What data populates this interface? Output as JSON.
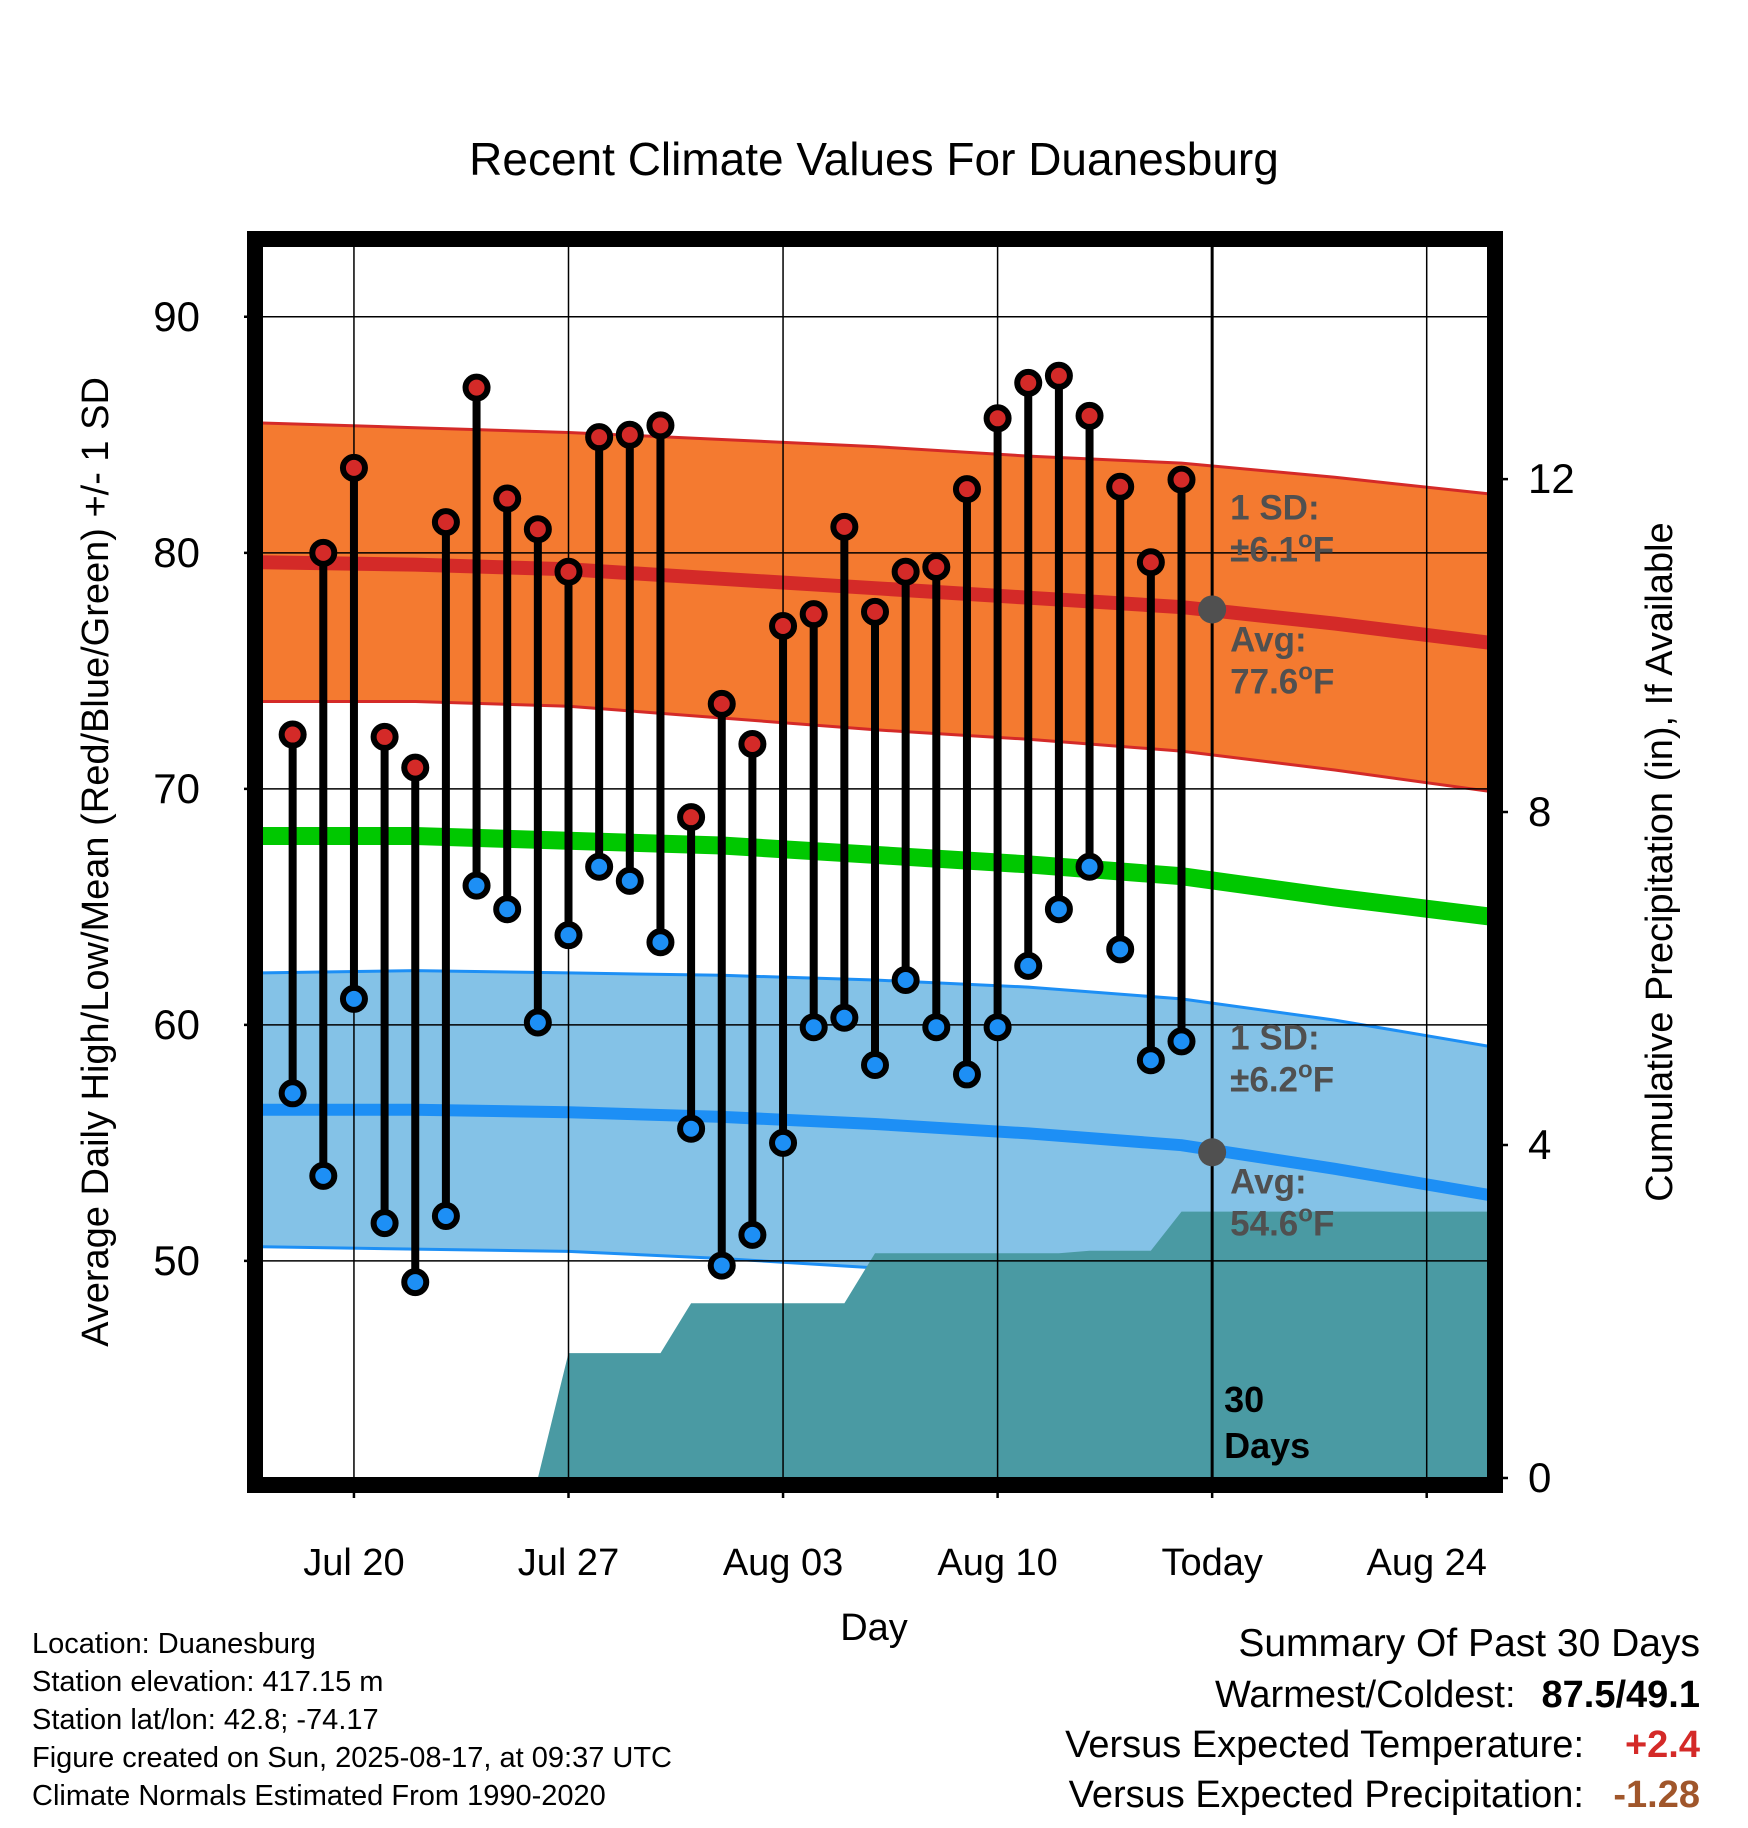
{
  "chart_data": {
    "type": "line",
    "title": "Recent Climate Values For Duanesburg",
    "xlabel": "Day",
    "ylabel": "Average Daily High/Low/Mean (Red/Blue/Green) +/- 1 SD",
    "y2label": "Cumulative Precipitation (in), If Available",
    "ylim": [
      40.8,
      93
    ],
    "y2lim": [
      0,
      14.8
    ],
    "yticks": [
      50,
      60,
      70,
      80,
      90
    ],
    "y2ticks": [
      0,
      4,
      8,
      12
    ],
    "xlim": [
      "2025-07-17",
      "2025-08-26"
    ],
    "xticks": [
      {
        "date": "2025-07-20",
        "label": "Jul 20"
      },
      {
        "date": "2025-07-27",
        "label": "Jul 27"
      },
      {
        "date": "2025-08-03",
        "label": "Aug 03"
      },
      {
        "date": "2025-08-10",
        "label": "Aug 10"
      },
      {
        "date": "2025-08-17",
        "label": "Today"
      },
      {
        "date": "2025-08-24",
        "label": "Aug 24"
      }
    ],
    "grid": true,
    "today": "2025-08-17",
    "window_label": "30\nDays",
    "observed": {
      "dates": [
        "2025-07-18",
        "2025-07-19",
        "2025-07-20",
        "2025-07-21",
        "2025-07-22",
        "2025-07-23",
        "2025-07-24",
        "2025-07-25",
        "2025-07-26",
        "2025-07-27",
        "2025-07-28",
        "2025-07-29",
        "2025-07-30",
        "2025-07-31",
        "2025-08-01",
        "2025-08-02",
        "2025-08-03",
        "2025-08-04",
        "2025-08-05",
        "2025-08-06",
        "2025-08-07",
        "2025-08-08",
        "2025-08-09",
        "2025-08-10",
        "2025-08-11",
        "2025-08-12",
        "2025-08-13",
        "2025-08-14",
        "2025-08-15",
        "2025-08-16"
      ],
      "high": [
        72.3,
        80.0,
        83.6,
        72.2,
        70.9,
        81.3,
        87.0,
        82.3,
        81.0,
        79.2,
        84.9,
        85.0,
        85.4,
        68.8,
        73.6,
        71.9,
        76.9,
        77.4,
        81.1,
        77.5,
        79.2,
        79.4,
        82.7,
        85.7,
        87.2,
        87.5,
        85.8,
        82.8,
        79.6,
        83.1
      ],
      "low": [
        57.1,
        53.6,
        61.1,
        51.6,
        49.1,
        51.9,
        65.9,
        64.9,
        60.1,
        63.8,
        66.7,
        66.1,
        63.5,
        55.6,
        49.8,
        51.1,
        55.0,
        59.9,
        60.3,
        58.3,
        61.9,
        59.9,
        57.9,
        59.9,
        62.5,
        64.9,
        66.7,
        63.2,
        58.5,
        59.3
      ]
    },
    "normals": {
      "dates": [
        "2025-07-17",
        "2025-07-22",
        "2025-07-27",
        "2025-08-01",
        "2025-08-06",
        "2025-08-11",
        "2025-08-16",
        "2025-08-21",
        "2025-08-26"
      ],
      "high_avg": [
        79.6,
        79.5,
        79.3,
        78.9,
        78.5,
        78.1,
        77.7,
        77.0,
        76.2
      ],
      "high_sd": [
        5.9,
        5.8,
        5.8,
        5.9,
        6.0,
        6.0,
        6.1,
        6.2,
        6.3
      ],
      "low_avg": [
        56.4,
        56.4,
        56.3,
        56.1,
        55.8,
        55.4,
        54.9,
        53.9,
        52.8
      ],
      "low_sd": [
        5.8,
        5.9,
        5.9,
        6.0,
        6.1,
        6.2,
        6.2,
        6.3,
        6.3
      ],
      "mean_avg": [
        68.0,
        68.0,
        67.8,
        67.6,
        67.2,
        66.8,
        66.3,
        65.4,
        64.6
      ]
    },
    "precip_cumulative": {
      "dates": [
        "2025-07-17",
        "2025-07-26",
        "2025-07-27",
        "2025-07-28",
        "2025-07-30",
        "2025-07-31",
        "2025-08-01",
        "2025-08-02",
        "2025-08-03",
        "2025-08-04",
        "2025-08-05",
        "2025-08-06",
        "2025-08-07",
        "2025-08-08",
        "2025-08-09",
        "2025-08-10",
        "2025-08-11",
        "2025-08-12",
        "2025-08-13",
        "2025-08-14",
        "2025-08-15",
        "2025-08-16",
        "2025-08-26"
      ],
      "values": [
        0,
        0,
        1.5,
        1.5,
        1.5,
        2.1,
        2.1,
        2.1,
        2.1,
        2.1,
        2.1,
        2.7,
        2.7,
        2.7,
        2.7,
        2.7,
        2.7,
        2.7,
        2.73,
        2.73,
        2.73,
        3.2,
        3.2
      ]
    },
    "annotations": {
      "high_sd_label": "1 SD:",
      "high_sd_value": "±6.1°F",
      "high_avg_label": "Avg:",
      "high_avg_value": "77.6°F",
      "high_avg_today": 77.6,
      "low_sd_label": "1 SD:",
      "low_sd_value": "±6.2°F",
      "low_avg_label": "Avg:",
      "low_avg_value": "54.6°F",
      "low_avg_today": 54.6
    },
    "colors": {
      "high_band": "#f47a30",
      "high_line": "#d42a28",
      "low_band": "#84c2e7",
      "low_line": "#1d8ff5",
      "mean_line": "#00c800",
      "precip": "#4a9aa3",
      "high_marker": "#d42a28",
      "low_marker": "#1d8ff5",
      "annotation_text": "#505050"
    }
  },
  "info": {
    "location": "Location: Duanesburg",
    "elevation": "Station elevation: 417.15 m",
    "latlon": "Station lat/lon: 42.8; -74.17",
    "created": "Figure created on Sun, 2025-08-17, at 09:37 UTC",
    "normals": "Climate Normals Estimated From 1990-2020"
  },
  "summary": {
    "title": "Summary Of Past 30 Days",
    "warm_cold_label": "Warmest/Coldest:",
    "warm_cold_value": "87.5/49.1",
    "temp_label": "Versus Expected Temperature:",
    "temp_value": "+2.4",
    "temp_color": "#d42a28",
    "precip_label": "Versus Expected Precipitation:",
    "precip_value": "-1.28",
    "precip_color": "#a0562b"
  }
}
